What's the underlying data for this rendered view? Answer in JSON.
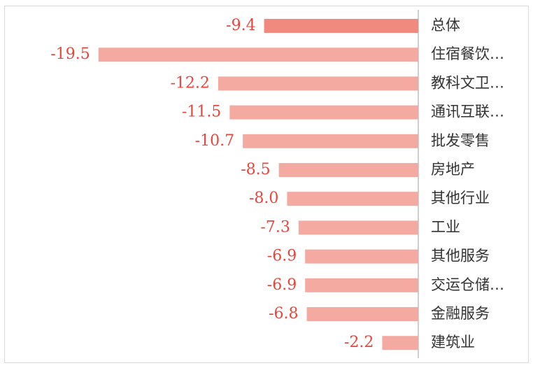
{
  "chart_data": {
    "type": "barh",
    "categories": [
      "总体",
      "住宿餐饮…",
      "教科文卫…",
      "通讯互联…",
      "批发零售",
      "房地产",
      "其他行业",
      "工业",
      "其他服务",
      "交运仓储…",
      "金融服务",
      "建筑业"
    ],
    "values": [
      -9.4,
      -19.5,
      -12.2,
      -11.5,
      -10.7,
      -8.5,
      -8.0,
      -7.3,
      -6.9,
      -6.9,
      -6.8,
      -2.2
    ],
    "value_labels": [
      "-9.4",
      "-19.5",
      "-12.2",
      "-11.5",
      "-10.7",
      "-8.5",
      "-8.0",
      "-7.3",
      "-6.9",
      "-6.9",
      "-6.8",
      "-2.2"
    ],
    "colors": [
      "#f08a7e",
      "#f4aaa0",
      "#f4aaa0",
      "#f4aaa0",
      "#f4aaa0",
      "#f4aaa0",
      "#f4aaa0",
      "#f4aaa0",
      "#f4aaa0",
      "#f4aaa0",
      "#f4aaa0",
      "#f4aaa0"
    ],
    "xlim": [
      -20,
      0
    ]
  }
}
